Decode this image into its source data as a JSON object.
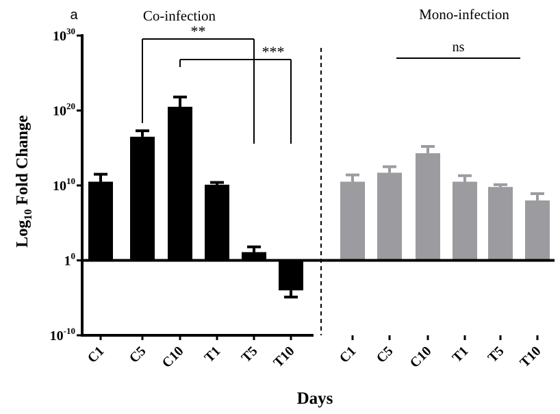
{
  "panel_label": "a",
  "group_titles": [
    "Co-infection",
    "Mono-infection"
  ],
  "colors": {
    "co_infection": "#000000",
    "mono_infection": "#9b9ba0",
    "axis": "#000000"
  },
  "chart_data": {
    "type": "bar",
    "ylabel_main": "Log",
    "ylabel_sub": "10",
    "ylabel_tail": " Fold Change",
    "xlabel": "Days",
    "y_scale": "log",
    "ylim_exponent": [
      -10,
      30
    ],
    "y_ticks": [
      {
        "base": "10",
        "exp": "30",
        "value": 30
      },
      {
        "base": "10",
        "exp": "20",
        "value": 20
      },
      {
        "base": "10",
        "exp": "10",
        "value": 10
      },
      {
        "base": "1",
        "exp": "0",
        "value": 0
      },
      {
        "base": "10",
        "exp": "-10",
        "value": -10
      }
    ],
    "series": [
      {
        "name": "Co-infection",
        "categories": [
          "C1",
          "C5",
          "C10",
          "T1",
          "T5",
          "T10"
        ],
        "log10_values": [
          10.5,
          16.5,
          20.5,
          10.1,
          1.1,
          -4.0
        ],
        "log10_error": [
          1.0,
          0.8,
          1.3,
          0.3,
          0.7,
          0.9
        ]
      },
      {
        "name": "Mono-infection",
        "categories": [
          "C1",
          "C5",
          "C10",
          "T1",
          "T5",
          "T10"
        ],
        "log10_values": [
          10.5,
          11.7,
          14.3,
          10.5,
          9.8,
          8.0
        ],
        "log10_error": [
          0.9,
          0.8,
          0.9,
          0.8,
          0.3,
          0.9
        ]
      }
    ],
    "annotations": [
      {
        "text": "**",
        "from": "C5",
        "to": "T5",
        "series": 0
      },
      {
        "text": "***",
        "from": "C10",
        "to": "T10",
        "series": 0
      },
      {
        "text": "ns",
        "from": "C5",
        "to": "T10",
        "series": 1
      }
    ]
  }
}
